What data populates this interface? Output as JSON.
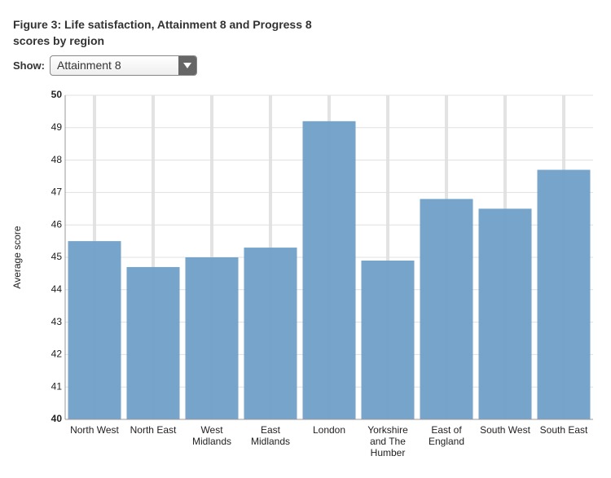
{
  "controls": {
    "show_label": "Show:",
    "selected": "Attainment 8"
  },
  "chart_data": {
    "type": "bar",
    "title": "Figure 3: Life satisfaction, Attainment 8 and Progress 8 scores by region",
    "y_label": "Average score",
    "categories": [
      "North West",
      "North East",
      "West Midlands",
      "East Midlands",
      "London",
      "Yorkshire and The Humber",
      "East of England",
      "South West",
      "South East"
    ],
    "values": [
      45.5,
      44.7,
      45.0,
      45.3,
      49.2,
      44.9,
      46.8,
      46.5,
      47.7
    ],
    "color": "#6f9fc8",
    "ylim": [
      40,
      50
    ],
    "yticks": [
      40,
      41,
      42,
      43,
      44,
      45,
      46,
      47,
      48,
      49,
      50
    ],
    "grid": true
  }
}
